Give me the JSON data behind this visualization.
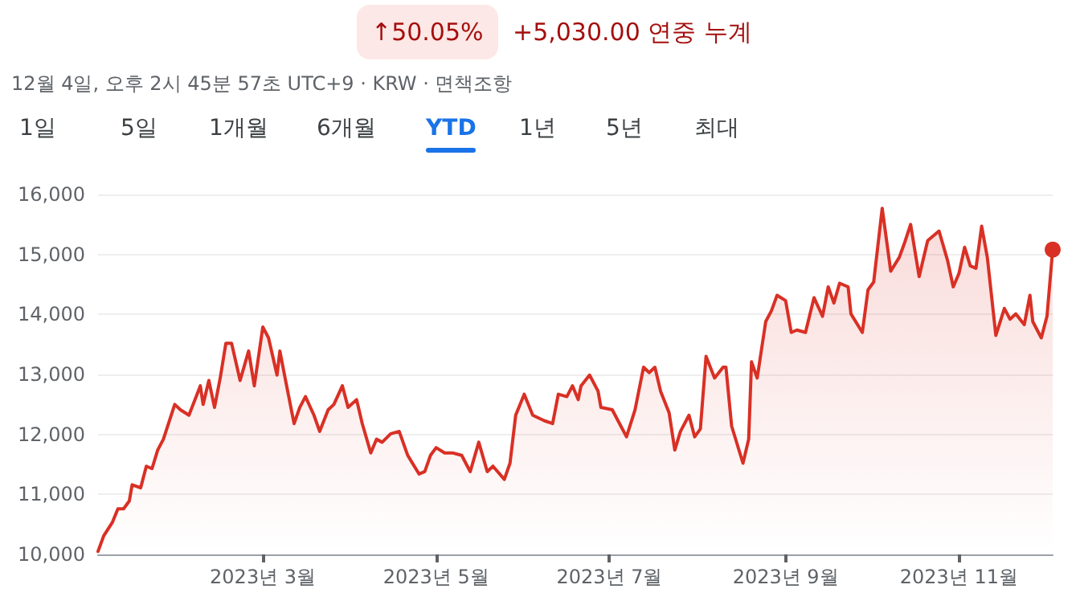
{
  "chart_data": {
    "type": "area",
    "title": "+5,030.00 연중 누계",
    "subtitle": "12월 4일, 오후 2시 45분 57초 UTC+9 · KRW · 면책조항",
    "annotations": [
      "↑50.05%",
      "1일",
      "5일",
      "1개월",
      "6개월",
      "YTD",
      "1년",
      "5년",
      "최대"
    ],
    "color": "#d93025",
    "grid": "y",
    "x": [
      "2023-01-02",
      "2023-01-04",
      "2023-01-07",
      "2023-01-09",
      "2023-01-11",
      "2023-01-13",
      "2023-01-14",
      "2023-01-17",
      "2023-01-19",
      "2023-01-21",
      "2023-01-23",
      "2023-01-25",
      "2023-01-29",
      "2023-01-31",
      "2023-02-03",
      "2023-02-07",
      "2023-02-08",
      "2023-02-10",
      "2023-02-12",
      "2023-02-14",
      "2023-02-16",
      "2023-02-18",
      "2023-02-21",
      "2023-02-24",
      "2023-02-26",
      "2023-03-01",
      "2023-03-03",
      "2023-03-06",
      "2023-03-07",
      "2023-03-09",
      "2023-03-12",
      "2023-03-14",
      "2023-03-16",
      "2023-03-19",
      "2023-03-21",
      "2023-03-24",
      "2023-03-26",
      "2023-03-29",
      "2023-03-31",
      "2023-04-03",
      "2023-04-05",
      "2023-04-08",
      "2023-04-10",
      "2023-04-12",
      "2023-04-15",
      "2023-04-18",
      "2023-04-21",
      "2023-04-25",
      "2023-04-27",
      "2023-04-29",
      "2023-05-01",
      "2023-05-04",
      "2023-05-07",
      "2023-05-10",
      "2023-05-13",
      "2023-05-16",
      "2023-05-19",
      "2023-05-21",
      "2023-05-25",
      "2023-05-27",
      "2023-05-29",
      "2023-06-01",
      "2023-06-04",
      "2023-06-08",
      "2023-06-11",
      "2023-06-13",
      "2023-06-16",
      "2023-06-18",
      "2023-06-20",
      "2023-06-21",
      "2023-06-24",
      "2023-06-27",
      "2023-06-28",
      "2023-07-02",
      "2023-07-04",
      "2023-07-07",
      "2023-07-10",
      "2023-07-13",
      "2023-07-15",
      "2023-07-17",
      "2023-07-19",
      "2023-07-22",
      "2023-07-24",
      "2023-07-26",
      "2023-07-29",
      "2023-07-31",
      "2023-08-02",
      "2023-08-04",
      "2023-08-07",
      "2023-08-10",
      "2023-08-11",
      "2023-08-13",
      "2023-08-17",
      "2023-08-19",
      "2023-08-20",
      "2023-08-22",
      "2023-08-25",
      "2023-08-27",
      "2023-08-29",
      "2023-09-01",
      "2023-09-03",
      "2023-09-05",
      "2023-09-08",
      "2023-09-11",
      "2023-09-14",
      "2023-09-16",
      "2023-09-18",
      "2023-09-20",
      "2023-09-23",
      "2023-09-24",
      "2023-09-28",
      "2023-09-30",
      "2023-10-02",
      "2023-10-05",
      "2023-10-08",
      "2023-10-11",
      "2023-10-13",
      "2023-10-15",
      "2023-10-18",
      "2023-10-21",
      "2023-10-25",
      "2023-10-28",
      "2023-10-30",
      "2023-11-01",
      "2023-11-03",
      "2023-11-05",
      "2023-11-07",
      "2023-11-09",
      "2023-11-11",
      "2023-11-14",
      "2023-11-17",
      "2023-11-19",
      "2023-11-21",
      "2023-11-24",
      "2023-11-26",
      "2023-11-27",
      "2023-11-30",
      "2023-12-02",
      "2023-12-04"
    ],
    "values": [
      10050,
      10310,
      10530,
      10760,
      10760,
      10890,
      11160,
      11110,
      11470,
      11430,
      11740,
      11920,
      12500,
      12410,
      12320,
      12810,
      12500,
      12900,
      12450,
      12940,
      13520,
      13520,
      12900,
      13390,
      12810,
      13790,
      13610,
      12990,
      13390,
      12900,
      12180,
      12450,
      12630,
      12320,
      12050,
      12410,
      12500,
      12810,
      12450,
      12580,
      12180,
      11690,
      11920,
      11870,
      12010,
      12050,
      11650,
      11340,
      11380,
      11650,
      11780,
      11690,
      11690,
      11650,
      11380,
      11870,
      11380,
      11470,
      11250,
      11520,
      12320,
      12670,
      12320,
      12230,
      12180,
      12670,
      12630,
      12810,
      12580,
      12810,
      12990,
      12720,
      12450,
      12410,
      12230,
      11960,
      12410,
      13120,
      13030,
      13120,
      12720,
      12360,
      11740,
      12050,
      12320,
      11960,
      12090,
      13300,
      12940,
      13120,
      13120,
      12140,
      11520,
      11920,
      13210,
      12940,
      13880,
      14060,
      14320,
      14230,
      13700,
      13740,
      13700,
      14280,
      13970,
      14460,
      14190,
      14520,
      14460,
      14010,
      13700,
      14410,
      14540,
      15770,
      14720,
      14950,
      15210,
      15500,
      14630,
      15230,
      15390,
      14900,
      14460,
      14680,
      15120,
      14810,
      14770,
      15470,
      14950,
      13650,
      14100,
      13920,
      14010,
      13830,
      14320,
      13880,
      13610,
      13970,
      15080
    ],
    "xlim": [
      "2023-01-02",
      "2023-12-04"
    ],
    "xticks": [
      {
        "value": "2023-03-01",
        "label": "2023년 3월"
      },
      {
        "value": "2023-05-01",
        "label": "2023년 5월"
      },
      {
        "value": "2023-07-01",
        "label": "2023년 7월"
      },
      {
        "value": "2023-09-01",
        "label": "2023년 9월"
      },
      {
        "value": "2023-11-01",
        "label": "2023년 11월"
      }
    ],
    "ylim": [
      10000,
      16000
    ],
    "yticks": [
      {
        "value": 10000,
        "label": "10,000"
      },
      {
        "value": 11000,
        "label": "11,000"
      },
      {
        "value": 12000,
        "label": "12,000"
      },
      {
        "value": 13000,
        "label": "13,000"
      },
      {
        "value": 14000,
        "label": "14,000"
      },
      {
        "value": 15000,
        "label": "15,000"
      },
      {
        "value": 16000,
        "label": "16,000"
      }
    ]
  }
}
